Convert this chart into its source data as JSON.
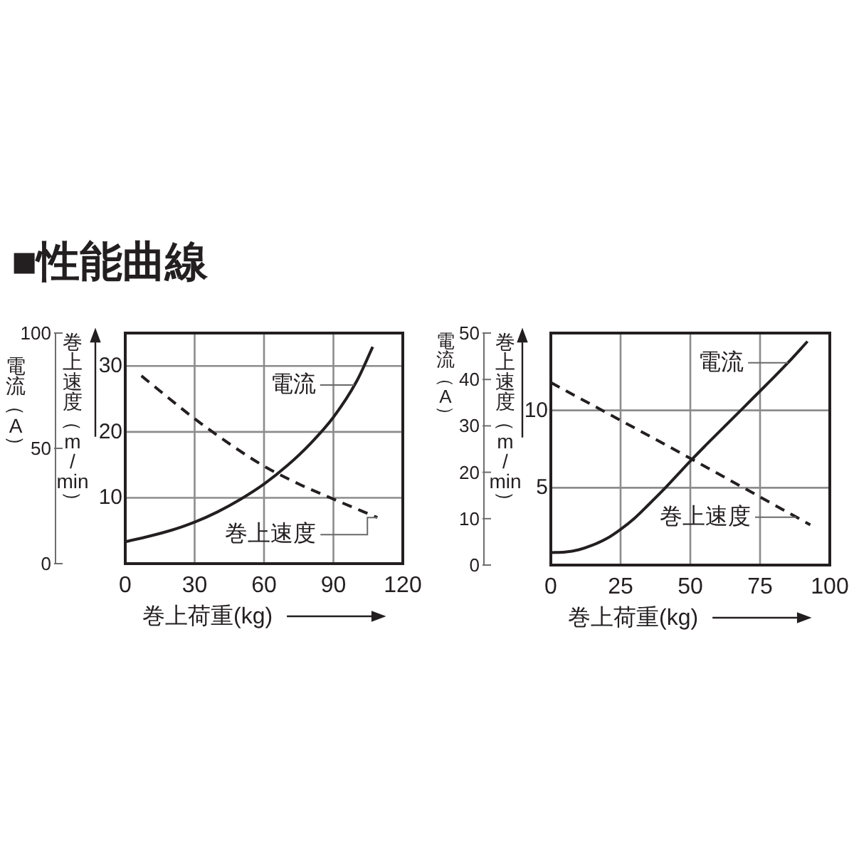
{
  "chart_data": [
    {
      "type": "line",
      "title": "■性能曲線",
      "xlabel": "巻上荷重(kg)",
      "ylabel": "巻上速度（m/min）",
      "y2label": "電流（A）",
      "xlim": [
        0,
        120
      ],
      "xticks": [
        0,
        30,
        60,
        90,
        120
      ],
      "ylim": [
        0,
        35
      ],
      "yticks": [
        10,
        20,
        30
      ],
      "y2lim": [
        0,
        100
      ],
      "y2ticks": [
        0,
        50,
        100
      ],
      "grid": true,
      "series": [
        {
          "name": "電流",
          "color": "#231f20",
          "axis": "y2",
          "line_style": "solid",
          "x": [
            0,
            10,
            20,
            30,
            40,
            50,
            60,
            70,
            80,
            90,
            100,
            107
          ],
          "values": [
            9.5,
            11.8,
            14.5,
            18,
            22.5,
            28,
            34.5,
            42.5,
            52,
            63.5,
            79,
            94
          ]
        },
        {
          "name": "巻上速度",
          "color": "#231f20",
          "line_style": "dashed",
          "x": [
            7,
            30,
            45,
            60,
            75,
            90,
            109
          ],
          "values": [
            28.5,
            22,
            18.2,
            14.8,
            12.1,
            9.8,
            7
          ]
        }
      ]
    },
    {
      "type": "line",
      "xlabel": "巻上荷重(kg)",
      "ylabel": "巻上速度（m/min）",
      "y2label": "電流（A）",
      "xlim": [
        0,
        100
      ],
      "xticks": [
        0,
        25,
        50,
        75,
        100
      ],
      "ylim": [
        0,
        15
      ],
      "yticks": [
        5,
        10
      ],
      "y2lim": [
        0,
        50
      ],
      "y2ticks": [
        0,
        10,
        20,
        30,
        40,
        50
      ],
      "grid": true,
      "series": [
        {
          "name": "電流",
          "color": "#231f20",
          "axis": "y2",
          "line_style": "solid",
          "x": [
            0,
            5,
            10,
            15,
            20,
            25,
            30,
            35,
            40,
            45,
            50,
            55,
            60,
            65,
            70,
            75,
            80,
            85,
            92
          ],
          "values": [
            2.7,
            2.8,
            3.3,
            4.3,
            5.7,
            7.7,
            10.1,
            13,
            16,
            19.2,
            22.4,
            25.5,
            28.5,
            31.5,
            34.5,
            37.5,
            40.5,
            43.6,
            48.2
          ]
        },
        {
          "name": "巻上速度",
          "color": "#231f20",
          "line_style": "dashed",
          "x": [
            0,
            50,
            93
          ],
          "values": [
            11.8,
            6.9,
            2.6
          ]
        }
      ]
    }
  ]
}
